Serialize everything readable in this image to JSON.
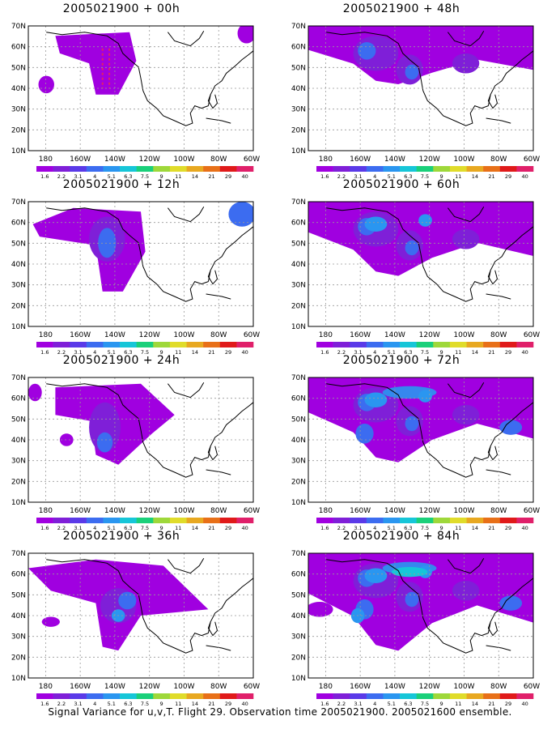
{
  "colors": {
    "scale": [
      "#a000e0",
      "#7f1fd8",
      "#5a3ae8",
      "#3c6cf0",
      "#2a96f0",
      "#16c6d8",
      "#1ad07a",
      "#9ed83a",
      "#e0dc2a",
      "#e8a820",
      "#e87018",
      "#e01a1a",
      "#e0206a"
    ]
  },
  "map": {
    "lat_labels": [
      "70N",
      "60N",
      "50N",
      "40N",
      "30N",
      "20N",
      "10N"
    ],
    "lon_labels": [
      "180",
      "160W",
      "140W",
      "120W",
      "100W",
      "80W",
      "60W"
    ]
  },
  "colorbar": {
    "labels": [
      "1.6",
      "2.2",
      "3.1",
      "4",
      "5.1",
      "6.3",
      "7.5",
      "9",
      "11",
      "14",
      "21",
      "29",
      "40"
    ]
  },
  "panels": [
    {
      "title": "2005021900 + 00h"
    },
    {
      "title": "2005021900 + 48h"
    },
    {
      "title": "2005021900 + 12h"
    },
    {
      "title": "2005021900 + 60h"
    },
    {
      "title": "2005021900 + 24h"
    },
    {
      "title": "2005021900 + 72h"
    },
    {
      "title": "2005021900 + 36h"
    },
    {
      "title": "2005021900 + 84h"
    }
  ],
  "footer": {
    "caption": "Signal Variance for u,v,T. Flight 29. Observation time 2005021900. 2005021600 ensemble."
  }
}
